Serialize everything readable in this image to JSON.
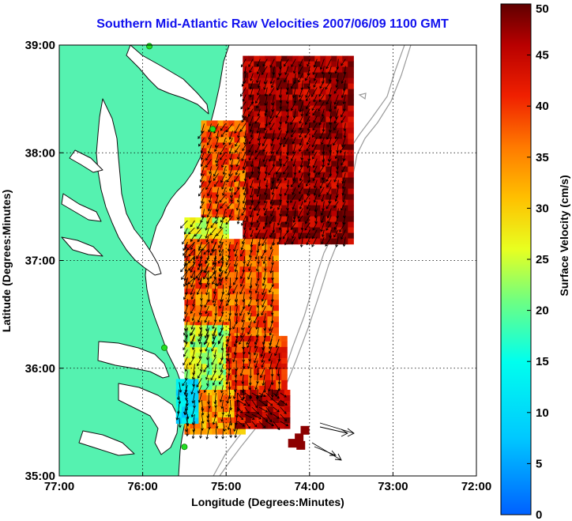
{
  "title": "Southern Mid-Atlantic Raw Velocities 2007/06/09 1100 GMT",
  "colors": {
    "land": "#55f2b0",
    "coast": "#111111",
    "bathymetry": "#9a9a9a",
    "station": "#22dd22",
    "grid": "#000000"
  },
  "chart_data": {
    "type": "heatmap",
    "title": "Southern Mid-Atlantic Raw Velocities 2007/06/09 1100 GMT",
    "xlabel": "Longitude (Degrees:Minutes)",
    "ylabel": "Latitude (Degrees:Minutes)",
    "xlim": [
      -77,
      -72
    ],
    "ylim": [
      35,
      39
    ],
    "x_ticks": [
      {
        "value": -77,
        "label": "77:00"
      },
      {
        "value": -76,
        "label": "76:00"
      },
      {
        "value": -75,
        "label": "75:00"
      },
      {
        "value": -74,
        "label": "74:00"
      },
      {
        "value": -73,
        "label": "73:00"
      },
      {
        "value": -72,
        "label": "72:00"
      }
    ],
    "y_ticks": [
      {
        "value": 35,
        "label": "35:00"
      },
      {
        "value": 36,
        "label": "36:00"
      },
      {
        "value": 37,
        "label": "37:00"
      },
      {
        "value": 38,
        "label": "38:00"
      },
      {
        "value": 39,
        "label": "39:00"
      }
    ],
    "grid": true,
    "colorbar": {
      "label": "Surface Velocity (cm/s)",
      "min": 0,
      "max": 50,
      "ticks": [
        {
          "value": 0,
          "label": "0"
        },
        {
          "value": 5,
          "label": "5"
        },
        {
          "value": 10,
          "label": "10"
        },
        {
          "value": 15,
          "label": "15"
        },
        {
          "value": 20,
          "label": "20"
        },
        {
          "value": 25,
          "label": "25"
        },
        {
          "value": 30,
          "label": "30"
        },
        {
          "value": 35,
          "label": "35"
        },
        {
          "value": 40,
          "label": "40"
        },
        {
          "value": 45,
          "label": "45"
        },
        {
          "value": 50,
          "label": "50"
        }
      ]
    },
    "stations": [
      {
        "lon": -75.92,
        "lat": 38.99
      },
      {
        "lon": -75.16,
        "lat": 38.22
      },
      {
        "lon": -75.74,
        "lat": 36.19
      },
      {
        "lon": -75.5,
        "lat": 35.27
      }
    ],
    "velocity_regions": [
      {
        "lon": [
          -74.8,
          -73.5
        ],
        "lat": [
          37.2,
          38.9
        ],
        "speed": 47,
        "dir_deg": 200
      },
      {
        "lon": [
          -75.3,
          -74.8
        ],
        "lat": [
          37.4,
          38.3
        ],
        "speed": 38,
        "dir_deg": 205
      },
      {
        "lon": [
          -75.5,
          -75.0
        ],
        "lat": [
          36.8,
          37.4
        ],
        "speed": 27,
        "dir_deg": 210
      },
      {
        "lon": [
          -75.5,
          -74.4
        ],
        "lat": [
          36.3,
          37.2
        ],
        "speed": 37,
        "dir_deg": 195
      },
      {
        "lon": [
          -75.5,
          -75.0
        ],
        "lat": [
          35.8,
          36.4
        ],
        "speed": 24,
        "dir_deg": 200
      },
      {
        "lon": [
          -75.0,
          -74.3
        ],
        "lat": [
          35.8,
          36.3
        ],
        "speed": 40,
        "dir_deg": 190
      },
      {
        "lon": [
          -75.5,
          -74.8
        ],
        "lat": [
          35.4,
          35.8
        ],
        "speed": 34,
        "dir_deg": 185
      },
      {
        "lon": [
          -75.6,
          -75.4
        ],
        "lat": [
          35.5,
          35.9
        ],
        "speed": 12,
        "dir_deg": 180
      },
      {
        "lon": [
          -74.9,
          -74.3
        ],
        "lat": [
          35.45,
          35.8
        ],
        "speed": 45,
        "dir_deg": 130
      }
    ]
  }
}
